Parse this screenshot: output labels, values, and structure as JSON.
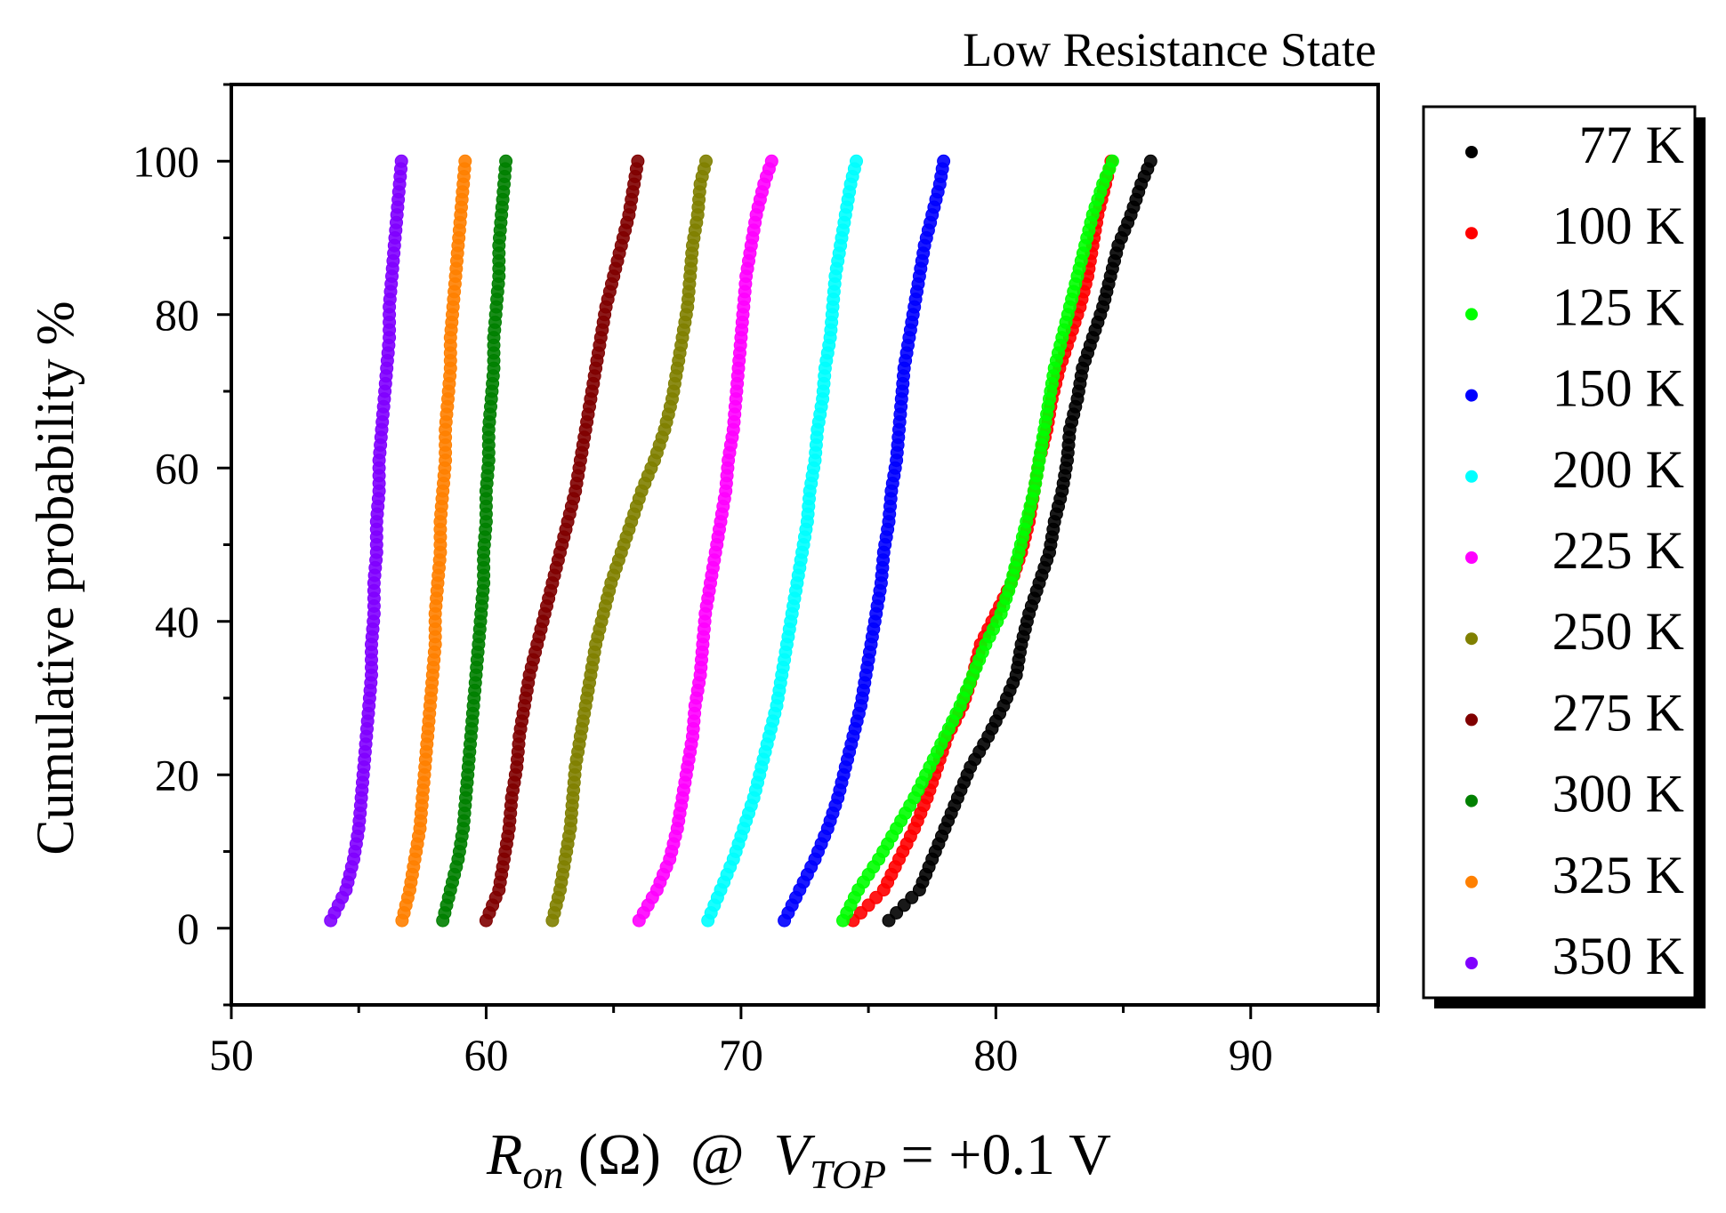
{
  "chart_data": {
    "type": "scatter",
    "title": "Low Resistance State",
    "xlabel": {
      "main": "R",
      "main_sub": "on",
      "unit": " (Ω)  @  ",
      "var": "V",
      "var_sub": "TOP",
      "tail": " = +0.1 V"
    },
    "ylabel": "Cumulative probability %",
    "xlim": [
      50,
      95
    ],
    "ylim": [
      -10,
      110
    ],
    "xticks": [
      "50",
      "60",
      "70",
      "80",
      "90"
    ],
    "yticks": [
      "0",
      "20",
      "40",
      "60",
      "80",
      "100"
    ],
    "grid": false,
    "legend_position": "right-outside",
    "series": [
      {
        "name": "77 K",
        "color": "#000000",
        "q": [
          75.8,
          77.0,
          77.5,
          78.0,
          78.5,
          79.0,
          79.7,
          80.3,
          80.8,
          81.0,
          81.3,
          81.7,
          82.1,
          82.3,
          82.6,
          82.8,
          82.9,
          83.2,
          83.4,
          83.8,
          84.2,
          84.5,
          84.8,
          85.3,
          85.7,
          86.2,
          86.9
        ]
      },
      {
        "name": "100 K",
        "color": "#ff0000",
        "q": [
          74.4,
          75.6,
          76.2,
          76.8,
          77.3,
          77.7,
          78.1,
          78.7,
          79.1,
          79.4,
          80.0,
          80.6,
          81.0,
          81.3,
          81.5,
          81.7,
          82.0,
          82.2,
          82.5,
          82.9,
          83.3,
          83.6,
          83.8,
          84.0,
          84.3,
          84.6,
          84.8
        ]
      },
      {
        "name": "125 K",
        "color": "#00ff00",
        "q": [
          74.0,
          74.6,
          75.4,
          76.1,
          76.8,
          77.4,
          78.0,
          78.6,
          79.1,
          79.6,
          80.2,
          80.6,
          80.9,
          81.2,
          81.5,
          81.7,
          81.9,
          82.1,
          82.3,
          82.6,
          82.9,
          83.2,
          83.5,
          83.8,
          84.2,
          84.7,
          85.2
        ]
      },
      {
        "name": "150 K",
        "color": "#0000ff",
        "q": [
          71.7,
          72.3,
          72.9,
          73.4,
          73.8,
          74.1,
          74.4,
          74.7,
          74.9,
          75.1,
          75.3,
          75.5,
          75.6,
          75.8,
          75.9,
          76.1,
          76.2,
          76.3,
          76.4,
          76.6,
          76.8,
          77.0,
          77.2,
          77.5,
          77.8,
          78.0,
          78.3
        ]
      },
      {
        "name": "200 K",
        "color": "#00ffff",
        "q": [
          68.7,
          69.2,
          69.7,
          70.1,
          70.5,
          70.8,
          71.1,
          71.4,
          71.6,
          71.8,
          72.0,
          72.2,
          72.4,
          72.6,
          72.7,
          72.9,
          73.0,
          73.2,
          73.3,
          73.5,
          73.6,
          73.7,
          73.9,
          74.1,
          74.3,
          74.6,
          75.2
        ]
      },
      {
        "name": "225 K",
        "color": "#ff00ff",
        "q": [
          66.0,
          66.7,
          67.2,
          67.5,
          67.7,
          67.9,
          68.1,
          68.2,
          68.4,
          68.5,
          68.6,
          68.8,
          69.0,
          69.2,
          69.4,
          69.5,
          69.7,
          69.8,
          69.9,
          70.0,
          70.1,
          70.2,
          70.4,
          70.6,
          70.9,
          71.3,
          71.8
        ]
      },
      {
        "name": "250 K",
        "color": "#808000",
        "q": [
          62.6,
          62.9,
          63.1,
          63.3,
          63.4,
          63.5,
          63.7,
          63.9,
          64.1,
          64.3,
          64.6,
          64.9,
          65.3,
          65.7,
          66.1,
          66.6,
          67.0,
          67.3,
          67.5,
          67.7,
          67.9,
          68.0,
          68.1,
          68.3,
          68.4,
          68.7,
          69.0
        ]
      },
      {
        "name": "275 K",
        "color": "#800000",
        "q": [
          60.0,
          60.5,
          60.7,
          60.9,
          61.0,
          61.2,
          61.3,
          61.5,
          61.7,
          62.0,
          62.3,
          62.6,
          62.9,
          63.2,
          63.5,
          63.7,
          63.9,
          64.1,
          64.3,
          64.5,
          64.7,
          65.0,
          65.3,
          65.6,
          65.8,
          66.0,
          66.6
        ]
      },
      {
        "name": "300 K",
        "color": "#008000",
        "q": [
          58.3,
          58.6,
          58.9,
          59.1,
          59.2,
          59.3,
          59.4,
          59.5,
          59.6,
          59.7,
          59.8,
          59.9,
          59.9,
          60.0,
          60.0,
          60.1,
          60.1,
          60.2,
          60.3,
          60.3,
          60.4,
          60.5,
          60.5,
          60.6,
          60.7,
          60.8,
          61.0
        ]
      },
      {
        "name": "325 K",
        "color": "#ff8000",
        "q": [
          56.7,
          57.0,
          57.2,
          57.4,
          57.5,
          57.6,
          57.7,
          57.8,
          57.9,
          58.0,
          58.0,
          58.1,
          58.2,
          58.2,
          58.3,
          58.4,
          58.4,
          58.5,
          58.6,
          58.6,
          58.7,
          58.8,
          58.9,
          59.0,
          59.1,
          59.2,
          59.4
        ]
      },
      {
        "name": "350 K",
        "color": "#8000ff",
        "q": [
          53.9,
          54.5,
          54.8,
          55.0,
          55.1,
          55.2,
          55.3,
          55.4,
          55.5,
          55.5,
          55.6,
          55.6,
          55.7,
          55.7,
          55.8,
          55.8,
          55.9,
          56.0,
          56.1,
          56.2,
          56.2,
          56.3,
          56.4,
          56.5,
          56.6,
          56.7,
          56.9
        ]
      }
    ]
  }
}
